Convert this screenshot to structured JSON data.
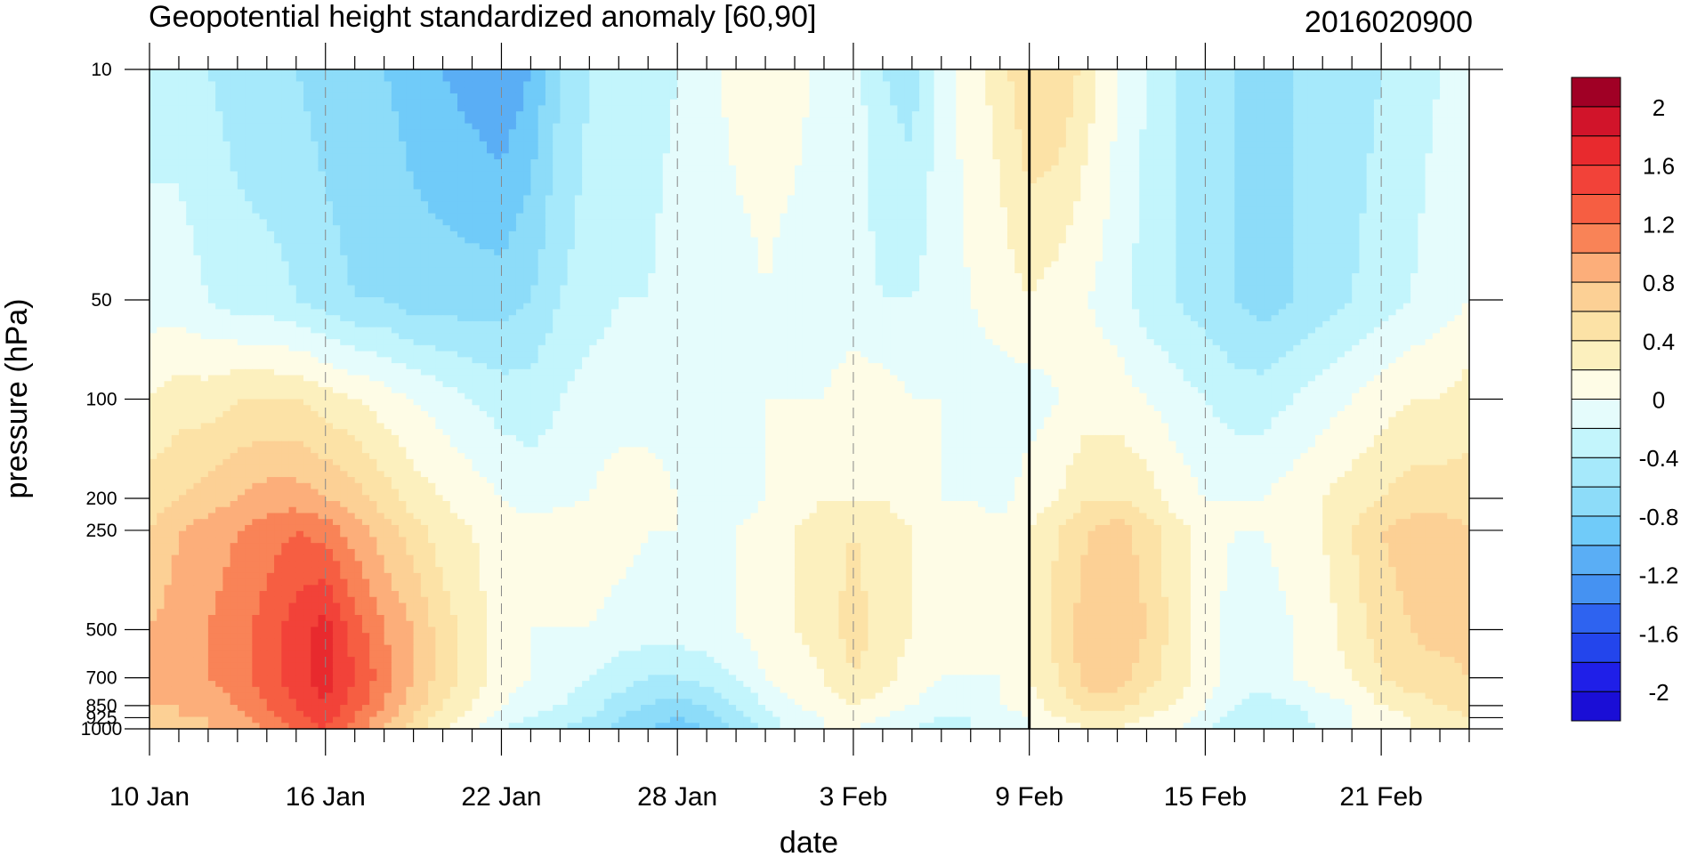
{
  "chart_data": {
    "type": "heatmap",
    "title": "Geopotential height standardized anomaly [60,90]",
    "subtitle": "2016020900",
    "xlabel": "date",
    "ylabel": "pressure (hPa)",
    "x_ticks": [
      "10 Jan",
      "16 Jan",
      "22 Jan",
      "28 Jan",
      "3 Feb",
      "9 Feb",
      "15 Feb",
      "21 Feb"
    ],
    "x_tick_day": [
      0,
      6,
      12,
      18,
      24,
      30,
      36,
      42
    ],
    "x_days": [
      0,
      1,
      2,
      3,
      4,
      5,
      6,
      7,
      8,
      9,
      10,
      11,
      12,
      13,
      14,
      15,
      16,
      17,
      18,
      19,
      20,
      21,
      22,
      23,
      24,
      25,
      26,
      27,
      28,
      29,
      30,
      31,
      32,
      33,
      34,
      35,
      36,
      37,
      38,
      39,
      40,
      41,
      42,
      43,
      44,
      45
    ],
    "y_levels": [
      10,
      50,
      100,
      200,
      250,
      500,
      700,
      850,
      925,
      1000
    ],
    "y_tick_labels": [
      "10",
      "50",
      "100",
      "200",
      "250",
      "500",
      "700",
      "850",
      "925",
      "1000"
    ],
    "current_date_day": 30,
    "colorbar": {
      "levels": [
        -2.2,
        -2.0,
        -1.8,
        -1.6,
        -1.4,
        -1.2,
        -1.0,
        -0.8,
        -0.6,
        -0.4,
        -0.2,
        0.0,
        0.2,
        0.4,
        0.6,
        0.8,
        1.0,
        1.2,
        1.4,
        1.6,
        1.8,
        2.0,
        2.2
      ],
      "labels": [
        "-2",
        "-1.6",
        "-1.2",
        "-0.8",
        "-0.4",
        "0",
        "0.4",
        "0.8",
        "1.2",
        "1.6",
        "2"
      ],
      "label_values": [
        -2,
        -1.6,
        -1.2,
        -0.8,
        -0.4,
        0,
        0.4,
        0.8,
        1.2,
        1.6,
        2
      ],
      "colors": [
        "#1a0ed6",
        "#1f1fe8",
        "#2345ec",
        "#2e63f0",
        "#4592f2",
        "#5aaef5",
        "#70cbf9",
        "#8ddcf9",
        "#a6e9fb",
        "#c3f5fc",
        "#e5fcfc",
        "#fefce6",
        "#fcf0be",
        "#fce2a6",
        "#fcd095",
        "#fcae7a",
        "#f98357",
        "#f65e42",
        "#f24239",
        "#e82a2e",
        "#d1142a",
        "#a00025"
      ]
    },
    "field": {
      "note_levels": "rows follow y_levels (top to bottom), columns follow x_days",
      "values": [
        [
          -0.3,
          -0.3,
          -0.4,
          -0.5,
          -0.6,
          -0.6,
          -0.7,
          -0.8,
          -0.8,
          -0.9,
          -1.0,
          -1.1,
          -1.2,
          -1.0,
          -0.6,
          -0.4,
          -0.4,
          -0.3,
          -0.2,
          -0.1,
          0.1,
          0.1,
          0.1,
          -0.1,
          -0.1,
          -0.4,
          -0.5,
          -0.1,
          0.1,
          0.3,
          0.6,
          0.6,
          0.3,
          0.0,
          -0.2,
          -0.4,
          -0.5,
          -0.6,
          -0.7,
          -0.6,
          -0.6,
          -0.5,
          -0.4,
          -0.3,
          -0.2,
          -0.1
        ],
        [
          -0.1,
          -0.1,
          -0.2,
          -0.3,
          -0.3,
          -0.4,
          -0.5,
          -0.6,
          -0.6,
          -0.7,
          -0.7,
          -0.7,
          -0.7,
          -0.6,
          -0.4,
          -0.3,
          -0.2,
          -0.2,
          -0.1,
          -0.1,
          -0.1,
          0.0,
          -0.1,
          -0.1,
          -0.1,
          -0.2,
          -0.2,
          -0.1,
          0.0,
          0.1,
          0.2,
          0.1,
          0.0,
          -0.1,
          -0.3,
          -0.4,
          -0.5,
          -0.6,
          -0.7,
          -0.6,
          -0.5,
          -0.4,
          -0.3,
          -0.2,
          -0.1,
          0.0
        ],
        [
          0.2,
          0.3,
          0.3,
          0.4,
          0.4,
          0.4,
          0.3,
          0.2,
          0.1,
          0.0,
          -0.1,
          -0.2,
          -0.3,
          -0.3,
          -0.2,
          -0.1,
          -0.1,
          -0.1,
          -0.1,
          -0.1,
          -0.1,
          0.0,
          0.0,
          0.0,
          0.1,
          0.1,
          0.0,
          0.0,
          -0.1,
          -0.1,
          -0.1,
          0.0,
          0.1,
          0.1,
          0.0,
          -0.1,
          -0.2,
          -0.3,
          -0.3,
          -0.2,
          -0.1,
          0.0,
          0.1,
          0.2,
          0.2,
          0.3
        ],
        [
          0.5,
          0.6,
          0.7,
          0.8,
          0.9,
          0.9,
          0.8,
          0.7,
          0.5,
          0.3,
          0.2,
          0.1,
          0.0,
          -0.1,
          -0.1,
          0.0,
          0.1,
          0.1,
          0.0,
          -0.1,
          -0.1,
          0.0,
          0.1,
          0.2,
          0.2,
          0.2,
          0.1,
          0.0,
          0.0,
          -0.1,
          0.1,
          0.2,
          0.4,
          0.4,
          0.3,
          0.1,
          0.0,
          0.0,
          0.0,
          0.1,
          0.2,
          0.3,
          0.4,
          0.5,
          0.5,
          0.5
        ],
        [
          0.6,
          0.8,
          0.9,
          1.0,
          1.1,
          1.2,
          1.1,
          0.9,
          0.7,
          0.5,
          0.3,
          0.2,
          0.1,
          0.1,
          0.2,
          0.2,
          0.1,
          0.0,
          0.0,
          0.0,
          0.0,
          0.1,
          0.2,
          0.3,
          0.4,
          0.3,
          0.2,
          0.1,
          0.1,
          0.1,
          0.2,
          0.4,
          0.6,
          0.7,
          0.5,
          0.3,
          0.1,
          0.0,
          0.0,
          0.1,
          0.2,
          0.4,
          0.6,
          0.7,
          0.7,
          0.6
        ],
        [
          0.8,
          0.9,
          1.0,
          1.1,
          1.3,
          1.5,
          1.7,
          1.3,
          1.0,
          0.8,
          0.5,
          0.3,
          0.1,
          0.0,
          0.0,
          0.0,
          -0.1,
          -0.1,
          -0.1,
          -0.1,
          0.0,
          0.1,
          0.2,
          0.3,
          0.5,
          0.3,
          0.2,
          0.1,
          0.0,
          0.0,
          0.2,
          0.5,
          0.7,
          0.8,
          0.6,
          0.3,
          0.1,
          -0.1,
          -0.1,
          0.0,
          0.1,
          0.3,
          0.5,
          0.6,
          0.7,
          0.7
        ],
        [
          0.9,
          0.9,
          1.0,
          1.1,
          1.3,
          1.5,
          1.7,
          1.4,
          1.1,
          0.8,
          0.5,
          0.3,
          0.1,
          0.0,
          -0.1,
          -0.2,
          -0.3,
          -0.4,
          -0.4,
          -0.3,
          -0.2,
          0.0,
          0.1,
          0.2,
          0.4,
          0.3,
          0.1,
          0.0,
          0.0,
          0.0,
          0.2,
          0.4,
          0.7,
          0.7,
          0.5,
          0.3,
          0.1,
          -0.1,
          -0.1,
          0.0,
          0.1,
          0.2,
          0.4,
          0.5,
          0.5,
          0.6
        ],
        [
          0.8,
          0.8,
          0.9,
          1.0,
          1.2,
          1.4,
          1.6,
          1.3,
          1.0,
          0.7,
          0.4,
          0.2,
          0.0,
          -0.1,
          -0.2,
          -0.3,
          -0.5,
          -0.6,
          -0.7,
          -0.6,
          -0.4,
          -0.2,
          0.0,
          0.1,
          0.2,
          0.1,
          0.0,
          -0.1,
          -0.1,
          0.0,
          0.1,
          0.3,
          0.5,
          0.5,
          0.3,
          0.2,
          0.0,
          -0.2,
          -0.3,
          -0.2,
          -0.1,
          0.0,
          0.2,
          0.3,
          0.4,
          0.5
        ],
        [
          0.7,
          0.8,
          0.8,
          0.9,
          1.1,
          1.3,
          1.5,
          1.2,
          0.9,
          0.6,
          0.3,
          0.1,
          -0.1,
          -0.2,
          -0.3,
          -0.4,
          -0.6,
          -0.7,
          -0.8,
          -0.7,
          -0.5,
          -0.3,
          -0.1,
          0.0,
          0.1,
          0.0,
          -0.1,
          -0.2,
          -0.2,
          -0.1,
          0.0,
          0.2,
          0.3,
          0.3,
          0.2,
          0.1,
          -0.1,
          -0.3,
          -0.4,
          -0.3,
          -0.1,
          0.0,
          0.1,
          0.2,
          0.3,
          0.4
        ],
        [
          0.6,
          0.7,
          0.8,
          0.9,
          1.0,
          1.2,
          1.4,
          1.1,
          0.8,
          0.5,
          0.2,
          0.0,
          -0.2,
          -0.3,
          -0.4,
          -0.5,
          -0.7,
          -0.8,
          -0.9,
          -0.8,
          -0.6,
          -0.3,
          -0.1,
          0.0,
          0.0,
          -0.1,
          -0.2,
          -0.3,
          -0.2,
          -0.1,
          0.0,
          0.1,
          0.2,
          0.2,
          0.1,
          0.0,
          -0.2,
          -0.4,
          -0.4,
          -0.3,
          -0.2,
          0.0,
          0.1,
          0.2,
          0.3,
          0.3
        ]
      ]
    }
  }
}
